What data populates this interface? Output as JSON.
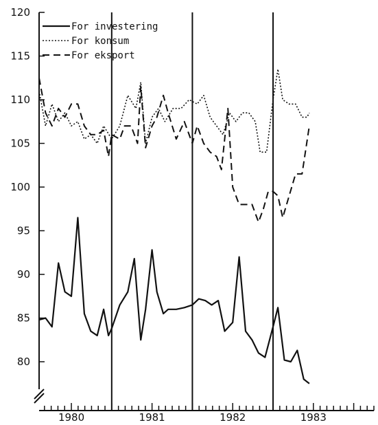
{
  "chart_data": {
    "type": "line",
    "title": "",
    "xlabel": "",
    "ylabel": "",
    "ylim": [
      76,
      120
    ],
    "xlim": [
      1979.6,
      1983.75
    ],
    "y_ticks": [
      "80",
      "85",
      "90",
      "95",
      "100",
      "105",
      "110",
      "115",
      "120"
    ],
    "x_ticks": [
      "1980",
      "1981",
      "1982",
      "1983"
    ],
    "grid": false,
    "legend_position": "top-left",
    "year_dividers": [
      1980.5,
      1981.5,
      1982.5
    ],
    "series": [
      {
        "name": "For investering",
        "style": "solid",
        "color": "#111111",
        "x": [
          1979.6,
          1979.68,
          1979.76,
          1979.84,
          1979.92,
          1980.0,
          1980.08,
          1980.16,
          1980.24,
          1980.32,
          1980.4,
          1980.46,
          1980.5,
          1980.6,
          1980.7,
          1980.78,
          1980.86,
          1980.92,
          1981.0,
          1981.06,
          1981.14,
          1981.2,
          1981.3,
          1981.4,
          1981.5,
          1981.58,
          1981.66,
          1981.74,
          1981.82,
          1981.9,
          1982.0,
          1982.08,
          1982.16,
          1982.24,
          1982.32,
          1982.4,
          1982.5,
          1982.56,
          1982.64,
          1982.72,
          1982.8,
          1982.88,
          1982.95
        ],
        "y": [
          84.8,
          85.0,
          84.0,
          91.3,
          88.0,
          87.5,
          96.5,
          85.5,
          83.5,
          83.0,
          86.0,
          83.0,
          83.8,
          86.5,
          88.0,
          91.8,
          82.5,
          86.0,
          92.8,
          88.0,
          85.5,
          86.0,
          86.0,
          86.2,
          86.5,
          87.2,
          87.0,
          86.5,
          87.0,
          83.5,
          84.5,
          92.0,
          83.5,
          82.5,
          81.0,
          80.5,
          84.0,
          86.2,
          80.2,
          80.0,
          81.3,
          78.0,
          77.5
        ]
      },
      {
        "name": "For konsum",
        "style": "dotted",
        "color": "#111111",
        "x": [
          1979.6,
          1979.68,
          1979.76,
          1979.84,
          1979.92,
          1980.0,
          1980.08,
          1980.16,
          1980.24,
          1980.32,
          1980.4,
          1980.5,
          1980.6,
          1980.7,
          1980.8,
          1980.86,
          1980.92,
          1981.0,
          1981.08,
          1981.16,
          1981.26,
          1981.36,
          1981.46,
          1981.56,
          1981.64,
          1981.72,
          1981.8,
          1981.88,
          1981.96,
          1982.04,
          1982.12,
          1982.2,
          1982.28,
          1982.34,
          1982.42,
          1982.5,
          1982.56,
          1982.62,
          1982.7,
          1982.78,
          1982.86,
          1982.92,
          1982.95
        ],
        "y": [
          111.0,
          107.0,
          109.5,
          107.5,
          108.5,
          107.0,
          107.5,
          105.5,
          106.0,
          105.0,
          107.0,
          105.5,
          107.0,
          110.5,
          109.0,
          112.0,
          105.0,
          108.0,
          109.0,
          107.5,
          109.0,
          109.0,
          110.0,
          109.5,
          110.5,
          108.0,
          107.0,
          106.0,
          108.5,
          107.5,
          108.5,
          108.5,
          107.5,
          104.0,
          104.0,
          110.0,
          113.5,
          110.0,
          109.5,
          109.5,
          108.0,
          108.0,
          108.5
        ]
      },
      {
        "name": "For eksport",
        "style": "dashed",
        "color": "#111111",
        "x": [
          1979.6,
          1979.68,
          1979.76,
          1979.84,
          1979.92,
          1980.0,
          1980.08,
          1980.16,
          1980.24,
          1980.32,
          1980.4,
          1980.46,
          1980.5,
          1980.6,
          1980.66,
          1980.74,
          1980.82,
          1980.86,
          1980.92,
          1981.0,
          1981.06,
          1981.14,
          1981.2,
          1981.3,
          1981.4,
          1981.5,
          1981.56,
          1981.64,
          1981.72,
          1981.8,
          1981.86,
          1981.94,
          1982.0,
          1982.08,
          1982.16,
          1982.24,
          1982.32,
          1982.38,
          1982.44,
          1982.5,
          1982.56,
          1982.62,
          1982.7,
          1982.78,
          1982.86,
          1982.95
        ],
        "y": [
          112.5,
          108.5,
          107.0,
          109.0,
          108.0,
          109.5,
          109.5,
          107.0,
          106.0,
          106.0,
          106.5,
          103.5,
          106.0,
          105.5,
          107.0,
          107.0,
          105.0,
          111.5,
          104.5,
          107.0,
          108.0,
          110.5,
          108.5,
          105.5,
          107.5,
          105.0,
          107.0,
          105.0,
          104.0,
          103.5,
          102.0,
          109.0,
          100.0,
          98.0,
          98.0,
          98.0,
          96.0,
          97.5,
          99.5,
          99.5,
          99.0,
          96.5,
          99.0,
          101.5,
          101.5,
          107.0
        ]
      }
    ]
  }
}
